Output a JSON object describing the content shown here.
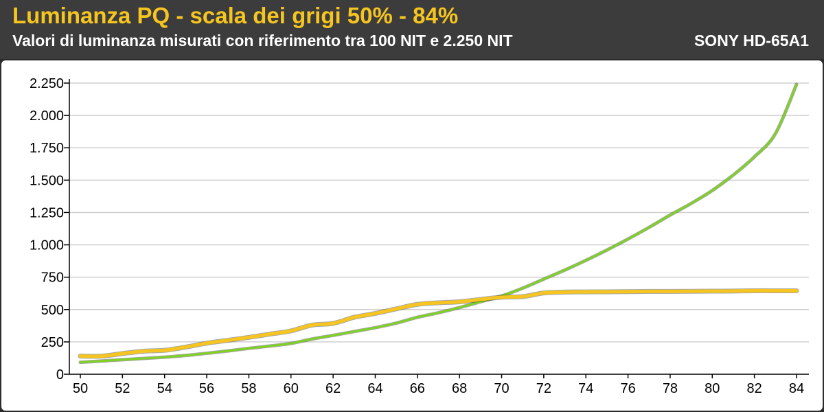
{
  "header": {
    "title": "Luminanza PQ - scala dei grigi 50% - 84%",
    "subtitle": "Valori di luminanza misurati con riferimento tra 100 NIT e 2.250 NIT",
    "model": "SONY HD-65A1"
  },
  "colors": {
    "background": "#2b2b2b",
    "header_bg": "#3c3c3c",
    "title": "#f6c520",
    "reference_line": "#7ed321",
    "measured_line": "#f6c520",
    "grid": "#cfcfcf"
  },
  "chart_data": {
    "type": "line",
    "title": "Luminanza PQ - scala dei grigi 50% - 84%",
    "xlabel": "",
    "ylabel": "",
    "xlim": [
      50,
      84
    ],
    "ylim": [
      0,
      2250
    ],
    "grid": true,
    "x_ticks": [
      50,
      52,
      54,
      56,
      58,
      60,
      62,
      64,
      66,
      68,
      70,
      72,
      74,
      76,
      78,
      80,
      82,
      84
    ],
    "x_tick_labels": [
      "50",
      "52",
      "54",
      "56",
      "58",
      "60",
      "62",
      "64",
      "66",
      "68",
      "70",
      "72",
      "74",
      "76",
      "78",
      "80",
      "82",
      "84"
    ],
    "y_ticks": [
      0,
      250,
      500,
      750,
      1000,
      1250,
      1500,
      1750,
      2000,
      2250
    ],
    "y_tick_labels": [
      "0",
      "250",
      "500",
      "750",
      "1.000",
      "1.250",
      "1.500",
      "1.750",
      "2.000",
      "2.250"
    ],
    "x": [
      50,
      51,
      52,
      53,
      54,
      55,
      56,
      57,
      58,
      59,
      60,
      61,
      62,
      63,
      64,
      65,
      66,
      67,
      68,
      69,
      70,
      71,
      72,
      73,
      74,
      75,
      76,
      77,
      78,
      79,
      80,
      81,
      82,
      83,
      84
    ],
    "series": [
      {
        "color": "#7ed321",
        "values": [
          92,
          102,
          112,
          122,
          132,
          145,
          162,
          180,
          200,
          218,
          238,
          272,
          300,
          330,
          360,
          395,
          440,
          475,
          515,
          560,
          605,
          665,
          735,
          805,
          880,
          960,
          1045,
          1135,
          1230,
          1320,
          1420,
          1540,
          1680,
          1860,
          2240
        ]
      },
      {
        "color": "#f6c520",
        "values": [
          140,
          140,
          160,
          178,
          185,
          210,
          240,
          262,
          285,
          310,
          335,
          380,
          393,
          440,
          470,
          505,
          540,
          552,
          560,
          578,
          595,
          600,
          628,
          635,
          636,
          637,
          638,
          640,
          640,
          641,
          642,
          643,
          645,
          645,
          645
        ]
      }
    ]
  }
}
